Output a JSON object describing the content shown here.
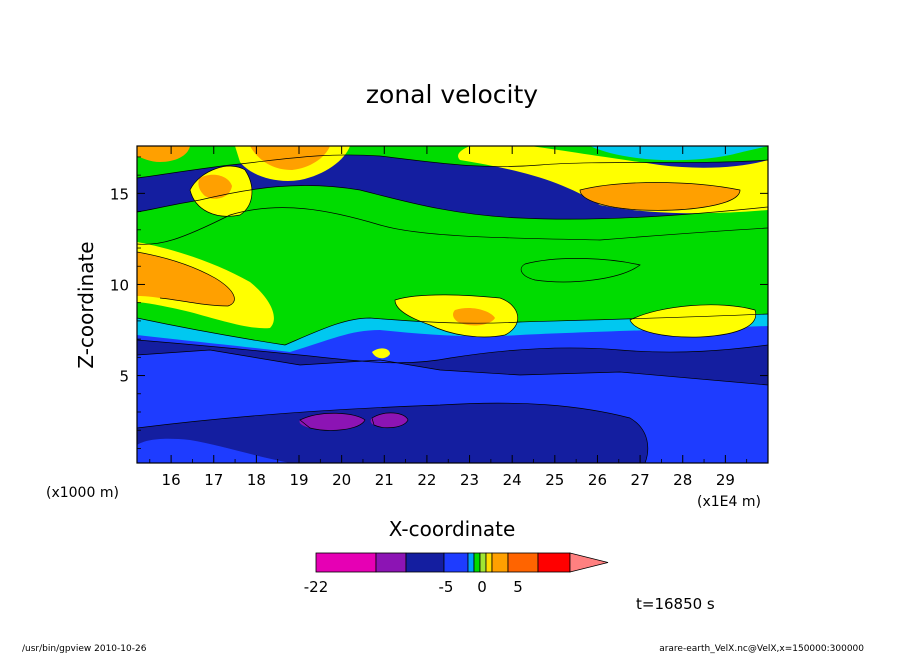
{
  "chart_data": {
    "type": "heatmap",
    "title": "zonal velocity",
    "xlabel": "X-coordinate",
    "ylabel": "Z-coordinate",
    "x_unit": "(x1E4 m)",
    "y_unit": "(x1000 m)",
    "xlim": [
      15.2,
      30.0
    ],
    "ylim": [
      0.2,
      17.6
    ],
    "x_ticks": [
      "16",
      "17",
      "18",
      "19",
      "20",
      "21",
      "22",
      "23",
      "24",
      "25",
      "26",
      "27",
      "28",
      "29"
    ],
    "y_ticks": [
      "5",
      "10",
      "15"
    ],
    "x_tick_values": [
      16,
      17,
      18,
      19,
      20,
      21,
      22,
      23,
      24,
      25,
      26,
      27,
      28,
      29
    ],
    "y_tick_values": [
      5,
      10,
      15
    ],
    "colorbar": {
      "labels": [
        {
          "value": -22,
          "text": "-22"
        },
        {
          "value": -5,
          "text": "-5"
        },
        {
          "value": 0,
          "text": "0"
        },
        {
          "value": 5,
          "text": "5"
        }
      ],
      "colors": [
        "#e600b4",
        "#8c14b4",
        "#141ea0",
        "#1e3cff",
        "#00a0ff",
        "#00dc00",
        "#a0e632",
        "#ffdc00",
        "#ffa000",
        "#ff6400",
        "#ff0000",
        "#ff8080"
      ]
    },
    "time_label": "t=16850 s",
    "fields": {
      "dark_blue": "#141ea0",
      "blue": "#1e3cff",
      "cyan": "#00c8f0",
      "green": "#00dc00",
      "yellow": "#ffff00",
      "orange": "#ffa000",
      "purple": "#8c14b4"
    }
  },
  "footer": {
    "left": "/usr/bin/gpview  2010-10-26",
    "right": "arare-earth_VelX.nc@VelX,x=150000:300000"
  }
}
